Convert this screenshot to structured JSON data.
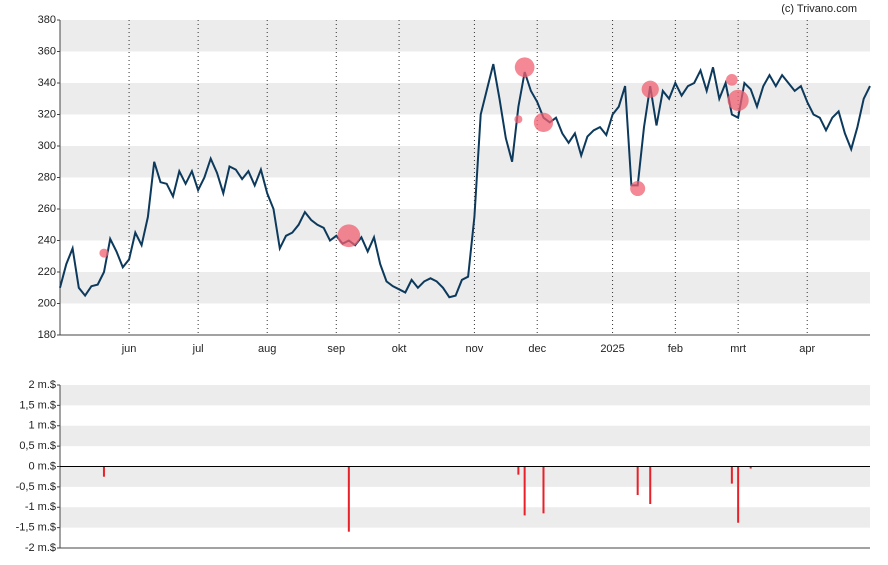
{
  "chart_data": [
    {
      "type": "line",
      "annotation": "(c) Trivano.com",
      "categories": [
        null,
        null,
        null,
        null,
        null,
        null,
        null,
        null,
        null,
        null,
        null,
        "jun",
        null,
        null,
        null,
        null,
        null,
        null,
        null,
        null,
        null,
        null,
        "jul",
        null,
        null,
        null,
        null,
        null,
        null,
        null,
        null,
        null,
        null,
        "aug",
        null,
        null,
        null,
        null,
        null,
        null,
        null,
        null,
        null,
        null,
        "sep",
        null,
        null,
        null,
        null,
        null,
        null,
        null,
        null,
        null,
        "okt",
        null,
        null,
        null,
        null,
        null,
        null,
        null,
        null,
        null,
        null,
        null,
        "nov",
        null,
        null,
        null,
        null,
        null,
        null,
        null,
        null,
        null,
        "dec",
        null,
        null,
        null,
        null,
        null,
        null,
        null,
        null,
        null,
        null,
        null,
        "2025",
        null,
        null,
        null,
        null,
        null,
        null,
        null,
        null,
        null,
        "feb",
        null,
        null,
        null,
        null,
        null,
        null,
        null,
        null,
        null,
        "mrt",
        null,
        null,
        null,
        null,
        null,
        null,
        null,
        null,
        null,
        null,
        "apr",
        null,
        null,
        null,
        null,
        null,
        null,
        null,
        null,
        null,
        null
      ],
      "series": [
        {
          "color": "#0d3a5c",
          "values": [
            210,
            225,
            235,
            210,
            205,
            211,
            212,
            220,
            241,
            233,
            223,
            228,
            245,
            237,
            255,
            290,
            277,
            276,
            268,
            284,
            276,
            284,
            272,
            280,
            292,
            283,
            270,
            287,
            285,
            279,
            284,
            275,
            285,
            270,
            260,
            235,
            243,
            245,
            250,
            258,
            253,
            250,
            248,
            240,
            243,
            238,
            240,
            237,
            242,
            233,
            242,
            225,
            214,
            211,
            209,
            207,
            215,
            210,
            214,
            216,
            214,
            210,
            204,
            205,
            215,
            217,
            255,
            320,
            336,
            352,
            330,
            305,
            290,
            325,
            347,
            335,
            328,
            318,
            315,
            318,
            308,
            302,
            308,
            294,
            306,
            310,
            312,
            307,
            320,
            325,
            338,
            275,
            275,
            312,
            338,
            313,
            335,
            330,
            340,
            332,
            338,
            340,
            348,
            335,
            350,
            330,
            340,
            320,
            318,
            340,
            336,
            325,
            338,
            345,
            338,
            345,
            340,
            335,
            338,
            328,
            320,
            318,
            310,
            318,
            322,
            308,
            298,
            312,
            330,
            338
          ]
        }
      ],
      "bubbles": {
        "color": "#f06070",
        "values": [
          null,
          null,
          null,
          null,
          null,
          null,
          null,
          232,
          null,
          null,
          null,
          null,
          null,
          null,
          null,
          null,
          null,
          null,
          null,
          null,
          null,
          null,
          null,
          null,
          null,
          null,
          null,
          null,
          null,
          null,
          null,
          null,
          null,
          null,
          null,
          null,
          null,
          null,
          null,
          null,
          null,
          null,
          null,
          null,
          null,
          null,
          243,
          null,
          null,
          null,
          null,
          null,
          null,
          null,
          null,
          null,
          null,
          null,
          null,
          null,
          null,
          null,
          null,
          null,
          null,
          null,
          null,
          null,
          null,
          null,
          null,
          null,
          null,
          317,
          350,
          null,
          null,
          315,
          null,
          null,
          null,
          null,
          null,
          null,
          null,
          null,
          null,
          null,
          null,
          null,
          null,
          null,
          273,
          null,
          336,
          null,
          null,
          null,
          null,
          null,
          null,
          null,
          null,
          null,
          null,
          null,
          null,
          342,
          329,
          null,
          null,
          null,
          null,
          null,
          null,
          null,
          null,
          null,
          null,
          null,
          null,
          null,
          null,
          null,
          null,
          null,
          null,
          null,
          null,
          null
        ],
        "sizes": [
          null,
          null,
          null,
          null,
          null,
          null,
          null,
          0.25,
          null,
          null,
          null,
          null,
          null,
          null,
          null,
          null,
          null,
          null,
          null,
          null,
          null,
          null,
          null,
          null,
          null,
          null,
          null,
          null,
          null,
          null,
          null,
          null,
          null,
          null,
          null,
          null,
          null,
          null,
          null,
          null,
          null,
          null,
          null,
          null,
          null,
          null,
          1.6,
          null,
          null,
          null,
          null,
          null,
          null,
          null,
          null,
          null,
          null,
          null,
          null,
          null,
          null,
          null,
          null,
          null,
          null,
          null,
          null,
          null,
          null,
          null,
          null,
          null,
          null,
          0.2,
          1.2,
          null,
          null,
          1.15,
          null,
          null,
          null,
          null,
          null,
          null,
          null,
          null,
          null,
          null,
          null,
          null,
          null,
          null,
          0.7,
          null,
          0.92,
          null,
          null,
          null,
          null,
          null,
          null,
          null,
          null,
          null,
          null,
          null,
          null,
          0.42,
          1.38,
          null,
          null,
          null,
          null,
          null,
          null,
          null,
          null,
          null,
          null,
          null,
          null,
          null,
          null,
          null,
          null,
          null,
          null,
          null,
          null,
          null
        ]
      },
      "ylim": [
        180,
        380
      ],
      "yticks": [
        180,
        200,
        220,
        240,
        260,
        280,
        300,
        320,
        340,
        360,
        380
      ],
      "grid": true
    },
    {
      "type": "bar",
      "color": "#e8202a",
      "values": [
        null,
        null,
        null,
        null,
        null,
        null,
        null,
        -0.25,
        null,
        null,
        null,
        null,
        null,
        null,
        null,
        null,
        null,
        null,
        null,
        null,
        null,
        null,
        null,
        null,
        null,
        null,
        null,
        null,
        null,
        null,
        null,
        null,
        null,
        null,
        null,
        null,
        null,
        null,
        null,
        null,
        null,
        null,
        null,
        null,
        null,
        null,
        -1.6,
        null,
        null,
        null,
        null,
        null,
        null,
        null,
        null,
        null,
        null,
        null,
        null,
        null,
        null,
        null,
        null,
        null,
        null,
        null,
        null,
        null,
        null,
        null,
        null,
        null,
        null,
        -0.2,
        -1.2,
        null,
        null,
        -1.15,
        null,
        null,
        null,
        null,
        null,
        null,
        null,
        null,
        null,
        null,
        null,
        null,
        null,
        null,
        -0.7,
        null,
        -0.92,
        null,
        null,
        null,
        null,
        null,
        null,
        null,
        null,
        null,
        null,
        null,
        null,
        -0.42,
        -1.38,
        null,
        -0.05,
        null,
        null,
        null,
        null,
        null,
        null,
        null,
        null,
        null,
        null,
        null,
        null,
        null,
        null,
        null,
        null,
        null,
        null,
        null
      ],
      "ylim": [
        -2,
        2
      ],
      "yticks": [
        {
          "value": -2,
          "label": "-2 m.$"
        },
        {
          "value": -1.5,
          "label": "-1,5 m.$"
        },
        {
          "value": -1,
          "label": "-1 m.$"
        },
        {
          "value": -0.5,
          "label": "-0,5 m.$"
        },
        {
          "value": 0,
          "label": "0 m.$"
        },
        {
          "value": 0.5,
          "label": "0,5 m.$"
        },
        {
          "value": 1,
          "label": "1 m.$"
        },
        {
          "value": 1.5,
          "label": "1,5 m.$"
        },
        {
          "value": 2,
          "label": "2 m.$"
        }
      ],
      "grid": true
    }
  ]
}
